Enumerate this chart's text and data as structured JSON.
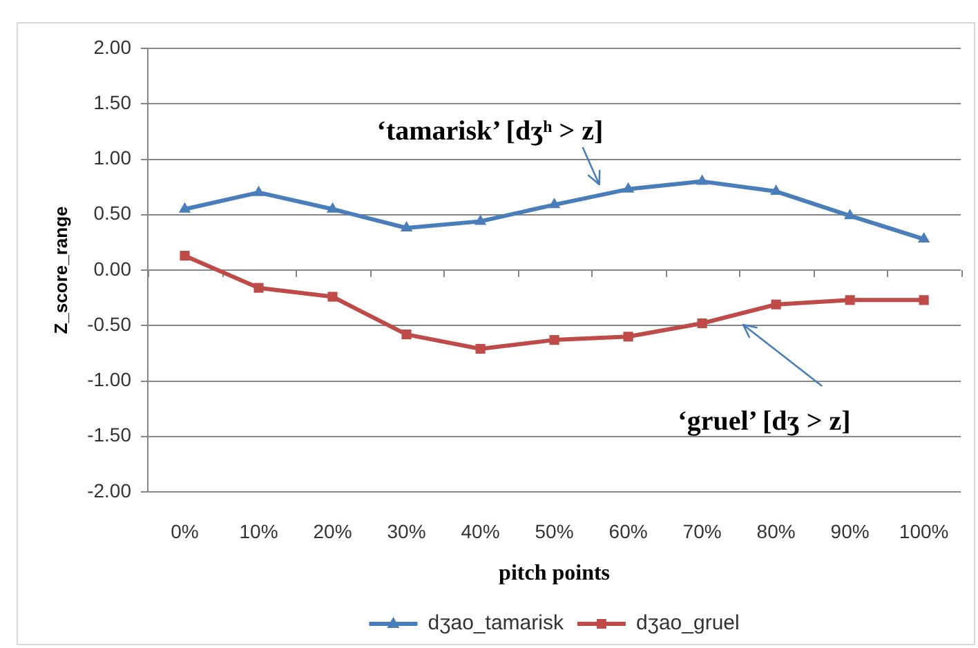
{
  "chart_data": {
    "type": "line",
    "xlabel": "pitch points",
    "ylabel": "Z_score_range",
    "categories": [
      "0%",
      "10%",
      "20%",
      "30%",
      "40%",
      "50%",
      "60%",
      "70%",
      "80%",
      "90%",
      "100%"
    ],
    "series": [
      {
        "name": "dʒao_tamarisk",
        "color": "#4a7ebb",
        "marker": "triangle",
        "values": [
          0.55,
          0.7,
          0.55,
          0.38,
          0.44,
          0.59,
          0.73,
          0.8,
          0.71,
          0.49,
          0.28
        ]
      },
      {
        "name": "dʒao_gruel",
        "color": "#be4b48",
        "marker": "square",
        "values": [
          0.13,
          -0.16,
          -0.24,
          -0.58,
          -0.71,
          -0.63,
          -0.6,
          -0.48,
          -0.31,
          -0.27,
          -0.27
        ]
      }
    ],
    "ylim": [
      -2,
      2
    ],
    "yticks": [
      {
        "value": -2,
        "label": "-2.00"
      },
      {
        "value": -1.5,
        "label": "-1.50"
      },
      {
        "value": -1,
        "label": "-1.00"
      },
      {
        "value": -0.5,
        "label": "-0.50"
      },
      {
        "value": 0,
        "label": "0.00"
      },
      {
        "value": 0.5,
        "label": "0.50"
      },
      {
        "value": 1,
        "label": "1.00"
      },
      {
        "value": 1.5,
        "label": "1.50"
      },
      {
        "value": 2,
        "label": "2.00"
      }
    ],
    "grid": "y",
    "legend": "bottom",
    "line_style": "solid",
    "annotations": [
      "‘tamarisk’ [dʒʰ > z]",
      "‘gruel’ [dʒ > z]"
    ]
  }
}
